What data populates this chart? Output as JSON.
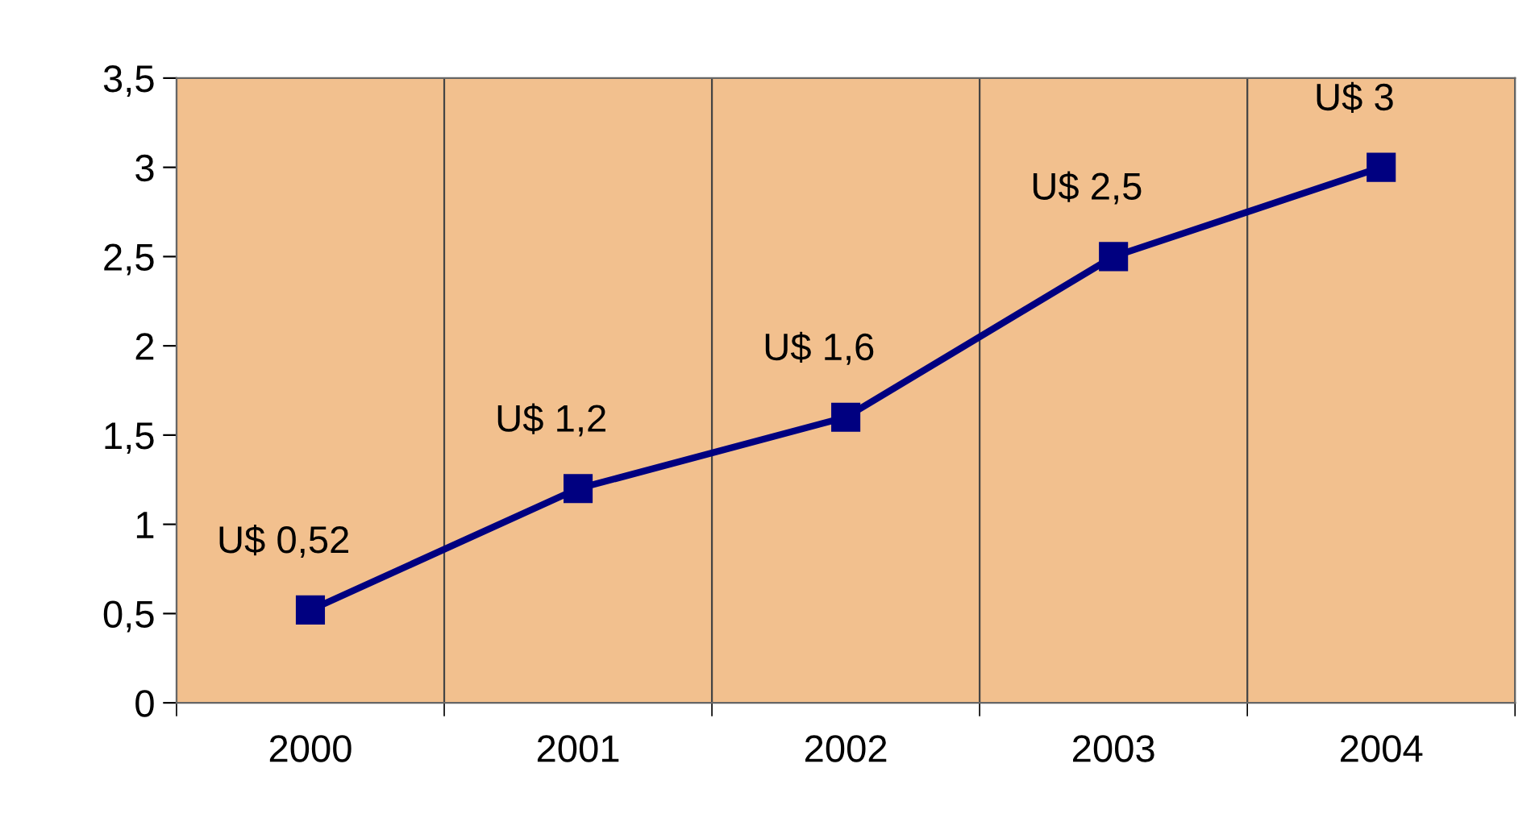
{
  "chart_data": {
    "type": "line",
    "categories": [
      "2000",
      "2001",
      "2002",
      "2003",
      "2004"
    ],
    "series": [
      {
        "color": "#000080",
        "values": [
          0.52,
          1.2,
          1.6,
          2.5,
          3
        ],
        "value_labels": [
          "U$ 0,52",
          "U$ 1,2",
          "U$ 1,6",
          "U$ 2,5",
          "U$ 3"
        ]
      }
    ],
    "ylim": [
      0,
      3.5
    ],
    "yticks": [
      0,
      {
        "value": 0.5,
        "label": "0,5"
      },
      1,
      {
        "value": 1.5,
        "label": "1,5"
      },
      2,
      {
        "value": 2.5,
        "label": "2,5"
      },
      3,
      {
        "value": 3.5,
        "label": "3,5"
      }
    ],
    "grid": "x",
    "marker": "square",
    "line_style": "solid"
  }
}
